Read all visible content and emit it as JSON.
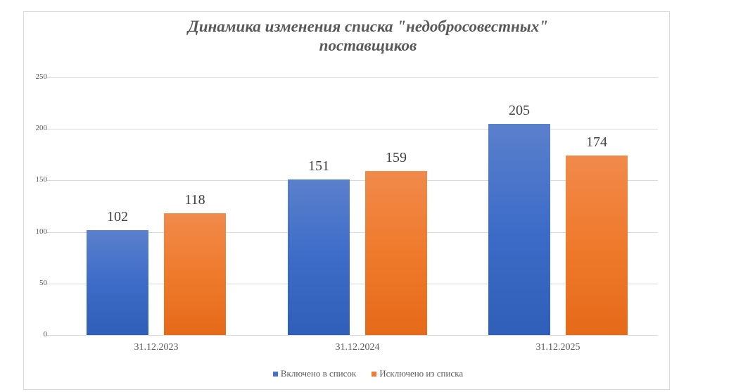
{
  "chart_data": {
    "type": "bar",
    "title": "Динамика изменения списка \"недобросовестных\" поставщиков",
    "title_lines": [
      "Динамика изменения списка \"недобросовестных\"",
      "поставщиков"
    ],
    "categories": [
      "31.12.2023",
      "31.12.2024",
      "31.12.2025"
    ],
    "series": [
      {
        "name": "Включено в список",
        "color": "#4472c4",
        "values": [
          102,
          151,
          205
        ]
      },
      {
        "name": "Исключено из списка",
        "color": "#ed7d31",
        "values": [
          118,
          159,
          174
        ]
      }
    ],
    "xlabel": "",
    "ylabel": "",
    "ylim": [
      0,
      250
    ],
    "yticks": [
      "0",
      "50",
      "100",
      "150",
      "200",
      "250"
    ],
    "grid": true,
    "legend_position": "bottom",
    "data_labels": true
  }
}
